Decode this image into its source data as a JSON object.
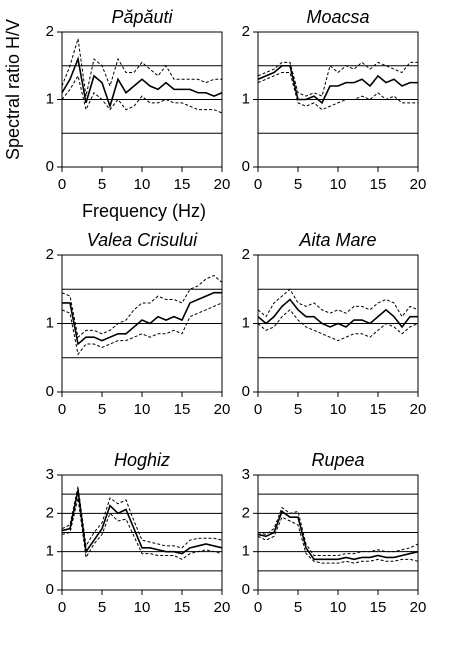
{
  "chart_data": [
    {
      "type": "line",
      "title": "Păpăuti",
      "ylabel": "Spectral ratio H/V",
      "xlabel": "Frequency (Hz)",
      "x": [
        0,
        1,
        2,
        3,
        4,
        5,
        6,
        7,
        8,
        9,
        10,
        11,
        12,
        13,
        14,
        15,
        16,
        17,
        18,
        19,
        20
      ],
      "xlim": [
        0,
        20
      ],
      "xticks": [
        0,
        5,
        10,
        15,
        20
      ],
      "ylim": [
        0,
        2
      ],
      "yticks": [
        0,
        1,
        2
      ],
      "grid_yticks": [
        0.5,
        1,
        1.5
      ],
      "grid": true,
      "series": [
        {
          "color": "#000000",
          "dashed": false,
          "values": [
            1.1,
            1.3,
            1.6,
            0.95,
            1.35,
            1.25,
            0.9,
            1.3,
            1.1,
            1.2,
            1.3,
            1.2,
            1.15,
            1.25,
            1.15,
            1.15,
            1.15,
            1.1,
            1.1,
            1.05,
            1.1
          ]
        },
        {
          "color": "#000000",
          "dashed": true,
          "values": [
            1.2,
            1.5,
            1.9,
            1.05,
            1.6,
            1.5,
            1.2,
            1.6,
            1.4,
            1.4,
            1.55,
            1.45,
            1.35,
            1.5,
            1.3,
            1.3,
            1.3,
            1.3,
            1.25,
            1.3,
            1.3
          ]
        },
        {
          "color": "#000000",
          "dashed": true,
          "values": [
            1.0,
            1.15,
            1.35,
            0.85,
            1.1,
            1.0,
            0.85,
            1.0,
            0.85,
            0.9,
            1.05,
            0.95,
            0.95,
            1.0,
            0.95,
            0.95,
            0.9,
            0.85,
            0.85,
            0.85,
            0.8
          ]
        }
      ]
    },
    {
      "type": "line",
      "title": "Moacsa",
      "x": [
        0,
        1,
        2,
        3,
        4,
        5,
        6,
        7,
        8,
        9,
        10,
        11,
        12,
        13,
        14,
        15,
        16,
        17,
        18,
        19,
        20
      ],
      "xlim": [
        0,
        20
      ],
      "xticks": [
        0,
        5,
        10,
        15,
        20
      ],
      "ylim": [
        0,
        2
      ],
      "yticks": [
        0,
        1,
        2
      ],
      "grid_yticks": [
        0.5,
        1,
        1.5
      ],
      "grid": true,
      "series": [
        {
          "color": "#000000",
          "dashed": false,
          "values": [
            1.3,
            1.35,
            1.4,
            1.5,
            1.5,
            1.0,
            1.0,
            1.05,
            0.95,
            1.2,
            1.2,
            1.25,
            1.25,
            1.3,
            1.2,
            1.35,
            1.25,
            1.3,
            1.2,
            1.25,
            1.25
          ]
        },
        {
          "color": "#000000",
          "dashed": true,
          "values": [
            1.35,
            1.4,
            1.45,
            1.55,
            1.55,
            1.1,
            1.05,
            1.1,
            1.05,
            1.5,
            1.4,
            1.5,
            1.45,
            1.55,
            1.45,
            1.55,
            1.5,
            1.45,
            1.4,
            1.55,
            1.55
          ]
        },
        {
          "color": "#000000",
          "dashed": true,
          "values": [
            1.25,
            1.3,
            1.35,
            1.4,
            1.4,
            0.95,
            0.9,
            0.95,
            0.85,
            0.9,
            0.95,
            1.0,
            1.0,
            1.05,
            1.0,
            1.1,
            1.0,
            1.05,
            0.95,
            0.95,
            0.95
          ]
        }
      ]
    },
    {
      "type": "line",
      "title": "Valea Crisului",
      "x": [
        0,
        1,
        2,
        3,
        4,
        5,
        6,
        7,
        8,
        9,
        10,
        11,
        12,
        13,
        14,
        15,
        16,
        17,
        18,
        19,
        20
      ],
      "xlim": [
        0,
        20
      ],
      "xticks": [
        0,
        5,
        10,
        15,
        20
      ],
      "ylim": [
        0,
        2
      ],
      "yticks": [
        0,
        1,
        2
      ],
      "grid_yticks": [
        0.5,
        1,
        1.5
      ],
      "grid": true,
      "series": [
        {
          "color": "#000000",
          "dashed": false,
          "values": [
            1.3,
            1.3,
            0.7,
            0.8,
            0.8,
            0.75,
            0.8,
            0.85,
            0.85,
            0.95,
            1.05,
            1.0,
            1.1,
            1.05,
            1.1,
            1.05,
            1.3,
            1.35,
            1.4,
            1.45,
            1.45
          ]
        },
        {
          "color": "#000000",
          "dashed": true,
          "values": [
            1.45,
            1.4,
            0.8,
            0.9,
            0.9,
            0.85,
            0.9,
            1.0,
            1.05,
            1.2,
            1.3,
            1.3,
            1.4,
            1.35,
            1.35,
            1.3,
            1.5,
            1.55,
            1.65,
            1.7,
            1.6
          ]
        },
        {
          "color": "#000000",
          "dashed": true,
          "values": [
            1.2,
            1.15,
            0.55,
            0.7,
            0.7,
            0.65,
            0.7,
            0.75,
            0.75,
            0.8,
            0.85,
            0.8,
            0.85,
            0.85,
            0.9,
            0.85,
            1.1,
            1.15,
            1.2,
            1.25,
            1.3
          ]
        }
      ]
    },
    {
      "type": "line",
      "title": "Aita Mare",
      "x": [
        0,
        1,
        2,
        3,
        4,
        5,
        6,
        7,
        8,
        9,
        10,
        11,
        12,
        13,
        14,
        15,
        16,
        17,
        18,
        19,
        20
      ],
      "xlim": [
        0,
        20
      ],
      "xticks": [
        0,
        5,
        10,
        15,
        20
      ],
      "ylim": [
        0,
        2
      ],
      "yticks": [
        0,
        1,
        2
      ],
      "grid_yticks": [
        0.5,
        1,
        1.5
      ],
      "grid": true,
      "series": [
        {
          "color": "#000000",
          "dashed": false,
          "values": [
            1.1,
            1.0,
            1.1,
            1.25,
            1.35,
            1.2,
            1.1,
            1.1,
            1.0,
            0.95,
            1.0,
            0.95,
            1.05,
            1.05,
            1.0,
            1.1,
            1.2,
            1.1,
            0.95,
            1.1,
            1.1
          ]
        },
        {
          "color": "#000000",
          "dashed": true,
          "values": [
            1.2,
            1.1,
            1.3,
            1.4,
            1.5,
            1.3,
            1.25,
            1.3,
            1.2,
            1.15,
            1.2,
            1.15,
            1.25,
            1.25,
            1.2,
            1.3,
            1.35,
            1.3,
            1.1,
            1.25,
            1.2
          ]
        },
        {
          "color": "#000000",
          "dashed": true,
          "values": [
            1.0,
            0.9,
            0.95,
            1.1,
            1.2,
            1.05,
            0.95,
            0.9,
            0.85,
            0.8,
            0.75,
            0.8,
            0.85,
            0.85,
            0.8,
            0.9,
            1.0,
            0.95,
            0.85,
            0.95,
            1.0
          ]
        }
      ]
    },
    {
      "type": "line",
      "title": "Hoghiz",
      "x": [
        0,
        1,
        2,
        3,
        4,
        5,
        6,
        7,
        8,
        9,
        10,
        11,
        12,
        13,
        14,
        15,
        16,
        17,
        18,
        19,
        20
      ],
      "xlim": [
        0,
        20
      ],
      "xticks": [
        0,
        5,
        10,
        15,
        20
      ],
      "ylim": [
        0,
        3
      ],
      "yticks": [
        0,
        1,
        2,
        3
      ],
      "grid_yticks": [
        0.5,
        1,
        1.5,
        2,
        2.5
      ],
      "grid": true,
      "series": [
        {
          "color": "#000000",
          "dashed": false,
          "values": [
            1.55,
            1.6,
            2.6,
            1.0,
            1.3,
            1.6,
            2.2,
            2.0,
            2.1,
            1.6,
            1.1,
            1.1,
            1.05,
            1.0,
            1.0,
            0.95,
            1.1,
            1.15,
            1.2,
            1.15,
            1.1
          ]
        },
        {
          "color": "#000000",
          "dashed": true,
          "values": [
            1.6,
            1.7,
            2.7,
            1.15,
            1.5,
            1.75,
            2.4,
            2.25,
            2.35,
            1.8,
            1.3,
            1.25,
            1.2,
            1.15,
            1.15,
            1.1,
            1.3,
            1.35,
            1.35,
            1.35,
            1.3
          ]
        },
        {
          "color": "#000000",
          "dashed": true,
          "values": [
            1.45,
            1.5,
            2.4,
            0.85,
            1.2,
            1.45,
            2.0,
            1.8,
            1.85,
            1.4,
            0.95,
            0.95,
            0.9,
            0.9,
            0.9,
            0.8,
            0.95,
            1.0,
            1.05,
            1.0,
            0.95
          ]
        }
      ]
    },
    {
      "type": "line",
      "title": "Rupea",
      "x": [
        0,
        1,
        2,
        3,
        4,
        5,
        6,
        7,
        8,
        9,
        10,
        11,
        12,
        13,
        14,
        15,
        16,
        17,
        18,
        19,
        20
      ],
      "xlim": [
        0,
        20
      ],
      "xticks": [
        0,
        5,
        10,
        15,
        20
      ],
      "ylim": [
        0,
        3
      ],
      "yticks": [
        0,
        1,
        2,
        3
      ],
      "grid_yticks": [
        0.5,
        1,
        1.5,
        2,
        2.5
      ],
      "grid": true,
      "series": [
        {
          "color": "#000000",
          "dashed": false,
          "values": [
            1.45,
            1.4,
            1.5,
            2.05,
            1.9,
            1.9,
            1.1,
            0.8,
            0.8,
            0.8,
            0.8,
            0.85,
            0.8,
            0.85,
            0.85,
            0.9,
            0.85,
            0.85,
            0.9,
            0.95,
            1.0
          ]
        },
        {
          "color": "#000000",
          "dashed": true,
          "values": [
            1.5,
            1.45,
            1.6,
            2.15,
            2.0,
            2.05,
            1.2,
            0.9,
            0.9,
            0.9,
            0.9,
            0.95,
            0.95,
            1.0,
            1.0,
            1.05,
            1.0,
            1.0,
            1.05,
            1.1,
            1.2
          ]
        },
        {
          "color": "#000000",
          "dashed": true,
          "values": [
            1.4,
            1.3,
            1.4,
            1.9,
            1.8,
            1.7,
            0.95,
            0.75,
            0.7,
            0.7,
            0.7,
            0.75,
            0.7,
            0.75,
            0.75,
            0.8,
            0.75,
            0.75,
            0.8,
            0.8,
            0.75
          ]
        }
      ]
    }
  ]
}
